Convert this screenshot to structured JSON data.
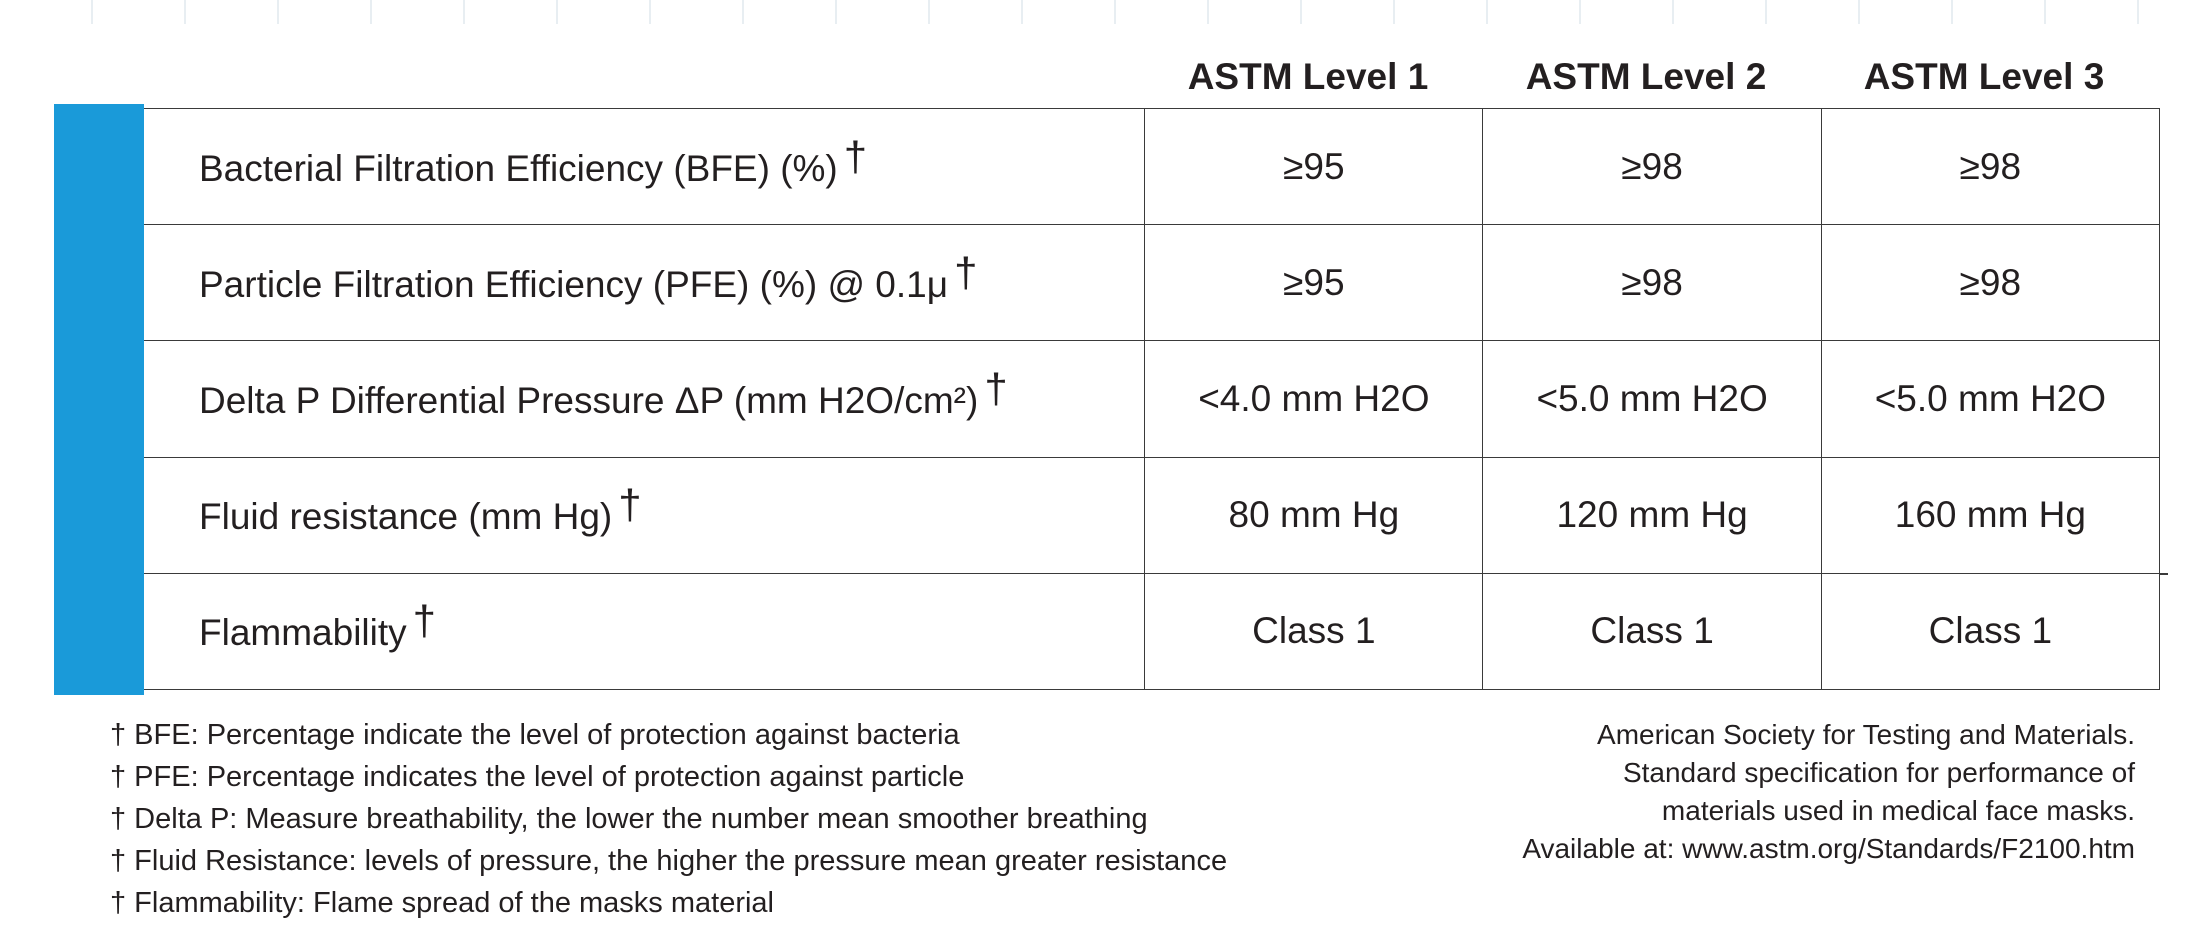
{
  "table": {
    "columns": [
      "ASTM Level 1",
      "ASTM Level 2",
      "ASTM Level 3"
    ],
    "dagger": "†",
    "rows": [
      {
        "label": "Bacterial Filtration Efficiency (BFE) (%)",
        "values": [
          "≥95",
          "≥98",
          "≥98"
        ]
      },
      {
        "label": "Particle Filtration Efficiency  (PFE) (%) @ 0.1μ",
        "values": [
          "≥95",
          "≥98",
          "≥98"
        ]
      },
      {
        "label": "Delta P Differential Pressure ΔP (mm H2O/cm²)",
        "values": [
          "<4.0 mm H2O",
          "<5.0 mm H2O",
          "<5.0 mm H2O"
        ]
      },
      {
        "label": "Fluid resistance (mm Hg)",
        "values": [
          "80 mm Hg",
          "120 mm Hg",
          "160 mm Hg"
        ]
      },
      {
        "label": "Flammability",
        "values": [
          "Class 1",
          "Class 1",
          "Class 1"
        ]
      }
    ]
  },
  "footnotes": [
    "† BFE: Percentage indicate the level of protection against bacteria",
    "† PFE: Percentage indicates the level of protection against particle",
    "† Delta P: Measure breathability, the lower the number mean smoother breathing",
    "† Fluid Resistance: levels of pressure, the higher the pressure mean greater resistance",
    "† Flammability: Flame spread of the masks material"
  ],
  "citation": {
    "lines": [
      "American Society for Testing and Materials.",
      "Standard specification for performance of",
      "materials used in medical face masks.",
      "Available at: www.astm.org/Standards/F2100.htm"
    ]
  },
  "colors": {
    "accent_bar": "#1a9ad9",
    "text": "#231f20",
    "grid_lines": "#3a3a3a"
  }
}
